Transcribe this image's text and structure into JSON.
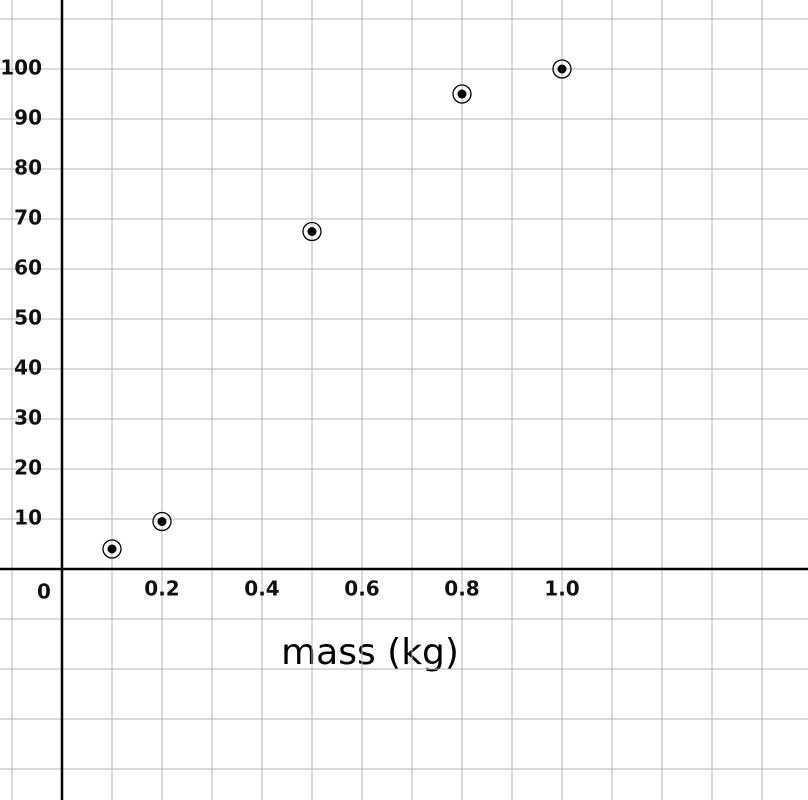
{
  "chart_data": {
    "type": "scatter",
    "x_label": "mass (kg)",
    "x": [
      0.1,
      0.2,
      0.5,
      0.8,
      1
    ],
    "values": [
      4,
      9.5,
      67.5,
      95,
      100
    ],
    "color": "#000000",
    "xlim": [
      -0.124,
      1.492
    ],
    "ylim": [
      -46.2,
      113.8
    ],
    "xticks": [
      0.2,
      0.4,
      0.6,
      0.8,
      {
        "value": 1,
        "label": "1.0"
      }
    ],
    "yticks": [
      0,
      10,
      20,
      30,
      40,
      50,
      60,
      70,
      80,
      90,
      100
    ],
    "grid": true
  }
}
